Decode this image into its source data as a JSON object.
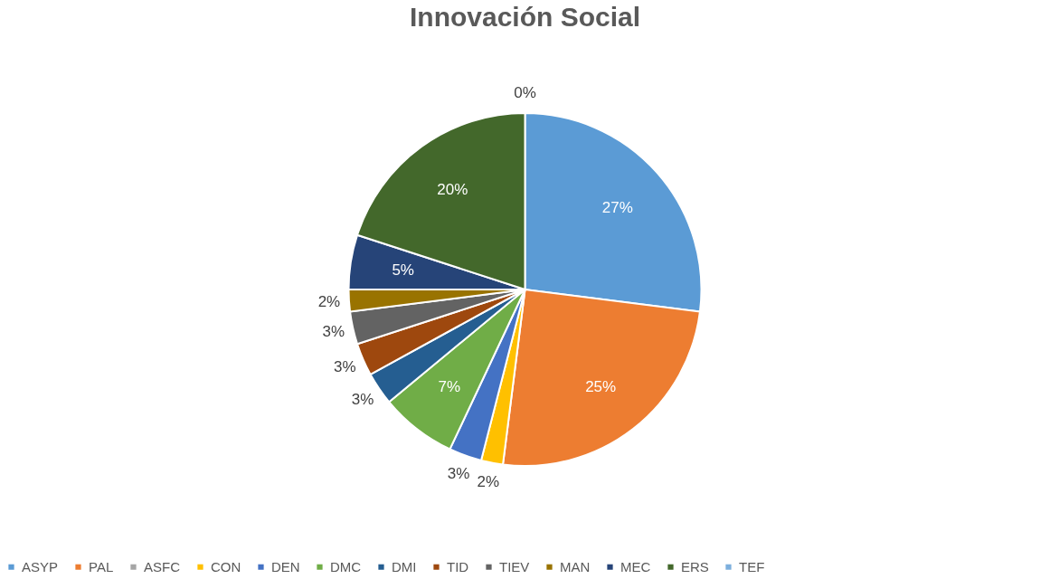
{
  "chart_data": {
    "type": "pie",
    "title": "Innovación Social",
    "categories": [
      "ASYP",
      "PAL",
      "ASFC",
      "CON",
      "DEN",
      "DMC",
      "DMI",
      "TID",
      "TIEV",
      "MAN",
      "MEC",
      "ERS",
      "TEF"
    ],
    "values": [
      27,
      25,
      0,
      2,
      3,
      7,
      3,
      3,
      3,
      2,
      5,
      20,
      0
    ],
    "value_labels": [
      "27%",
      "25%",
      null,
      "2%",
      "3%",
      "7%",
      "3%",
      "3%",
      "3%",
      "2%",
      "5%",
      "20%",
      "0%"
    ],
    "colors": [
      "#5b9bd5",
      "#ed7d31",
      "#a5a5a5",
      "#ffc000",
      "#4472c4",
      "#70ad47",
      "#255e91",
      "#9e480e",
      "#636363",
      "#997300",
      "#264478",
      "#43682b",
      "#7cafdd"
    ],
    "legend": "bottom"
  }
}
